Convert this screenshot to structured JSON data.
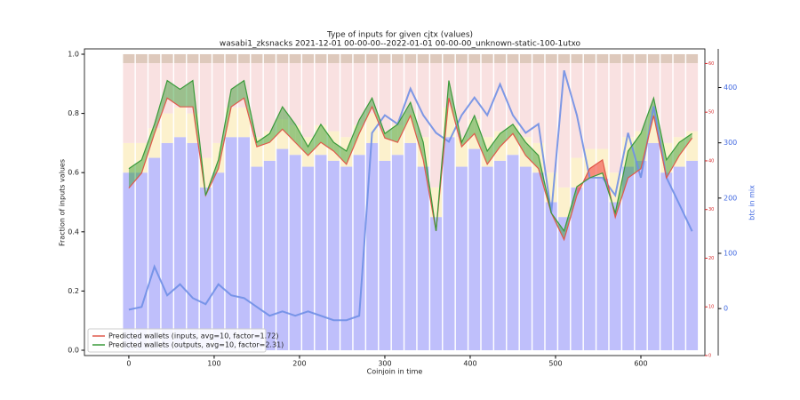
{
  "chart_data": {
    "type": "line",
    "title": "Type of inputs for given cjtx (values)",
    "subtitle": "wasabi1_zksnacks 2021-12-01 00-00-00--2022-01-01 00-00-00_unknown-static-100-1utxo",
    "xlabel": "Coinjoin in time",
    "ylabel": "Fraction of inputs values",
    "y3label": "btc in mix",
    "y3color": "#4169e1",
    "y2color": "#d62728",
    "xlim": [
      -52,
      675
    ],
    "xticks": [
      0,
      100,
      200,
      300,
      400,
      500,
      600
    ],
    "ylim": [
      -0.018,
      1.018
    ],
    "yticks": [
      {
        "value": 0,
        "label": "0.0"
      },
      {
        "value": 0.2,
        "label": "0.2"
      },
      {
        "value": 0.4,
        "label": "0.4"
      },
      {
        "value": 0.6,
        "label": "0.6"
      },
      {
        "value": 0.8,
        "label": "0.8"
      },
      {
        "value": 1,
        "label": "1.0"
      }
    ],
    "y2lim": [
      0,
      63
    ],
    "y2ticks": [
      0,
      10,
      20,
      30,
      40,
      50,
      60
    ],
    "y3lim": [
      -85,
      470
    ],
    "y3ticks": [
      0,
      100,
      200,
      300,
      400
    ],
    "legend": "lower left",
    "x": [
      0,
      15,
      30,
      45,
      60,
      75,
      90,
      105,
      120,
      135,
      150,
      165,
      180,
      195,
      210,
      225,
      240,
      255,
      270,
      285,
      300,
      315,
      330,
      345,
      360,
      375,
      390,
      405,
      420,
      435,
      450,
      465,
      480,
      495,
      510,
      525,
      540,
      555,
      570,
      585,
      600,
      615,
      630,
      645,
      660
    ],
    "stack": [
      {
        "color": "#b4b4fa",
        "values": [
          0.6,
          0.6,
          0.65,
          0.7,
          0.72,
          0.7,
          0.55,
          0.6,
          0.72,
          0.72,
          0.62,
          0.64,
          0.68,
          0.66,
          0.62,
          0.66,
          0.64,
          0.62,
          0.66,
          0.7,
          0.64,
          0.66,
          0.7,
          0.62,
          0.45,
          0.72,
          0.62,
          0.68,
          0.62,
          0.64,
          0.66,
          0.62,
          0.6,
          0.5,
          0.45,
          0.55,
          0.58,
          0.58,
          0.5,
          0.62,
          0.64,
          0.7,
          0.6,
          0.62,
          0.64
        ]
      },
      {
        "color": "#fbeec4",
        "values": [
          0.1,
          0.1,
          0.1,
          0.1,
          0.1,
          0.1,
          0.1,
          0.1,
          0.1,
          0.1,
          0.1,
          0.1,
          0.1,
          0.1,
          0.1,
          0.1,
          0.1,
          0.1,
          0.1,
          0.1,
          0.1,
          0.1,
          0.1,
          0.1,
          0.1,
          0.1,
          0.1,
          0.1,
          0.1,
          0.1,
          0.1,
          0.1,
          0.1,
          0.1,
          0.1,
          0.1,
          0.1,
          0.1,
          0.1,
          0.1,
          0.1,
          0.1,
          0.1,
          0.1,
          0.1
        ]
      },
      {
        "color": "#f8dcdc",
        "values": [
          0.27,
          0.27,
          0.22,
          0.17,
          0.15,
          0.17,
          0.32,
          0.27,
          0.15,
          0.15,
          0.25,
          0.23,
          0.19,
          0.21,
          0.25,
          0.21,
          0.23,
          0.25,
          0.21,
          0.17,
          0.23,
          0.21,
          0.17,
          0.25,
          0.42,
          0.15,
          0.25,
          0.19,
          0.25,
          0.23,
          0.21,
          0.25,
          0.27,
          0.37,
          0.42,
          0.32,
          0.29,
          0.29,
          0.37,
          0.25,
          0.23,
          0.17,
          0.27,
          0.25,
          0.23
        ]
      },
      {
        "color": "#d8c0b0",
        "values": [
          0.03,
          0.03,
          0.03,
          0.03,
          0.03,
          0.03,
          0.03,
          0.03,
          0.03,
          0.03,
          0.03,
          0.03,
          0.03,
          0.03,
          0.03,
          0.03,
          0.03,
          0.03,
          0.03,
          0.03,
          0.03,
          0.03,
          0.03,
          0.03,
          0.03,
          0.03,
          0.03,
          0.03,
          0.03,
          0.03,
          0.03,
          0.03,
          0.03,
          0.03,
          0.03,
          0.03,
          0.03,
          0.03,
          0.03,
          0.03,
          0.03,
          0.03,
          0.03,
          0.03,
          0.03
        ]
      }
    ],
    "series": [
      {
        "name": "Predicted wallets (inputs, avg=10, factor=1.72)",
        "color": "#e0584a",
        "axis": "y2",
        "values": [
          34.4,
          37.5,
          45.6,
          52.9,
          51.1,
          51.1,
          32.9,
          38.4,
          51.1,
          52.9,
          42.9,
          43.8,
          46.5,
          43.8,
          41.1,
          43.8,
          42.0,
          39.3,
          45.6,
          51.1,
          44.7,
          43.8,
          49.3,
          40.2,
          25.6,
          52.9,
          42.9,
          45.6,
          39.3,
          42.9,
          45.6,
          41.1,
          38.4,
          29.3,
          23.8,
          32.9,
          38.4,
          40.2,
          28.4,
          36.5,
          38.4,
          49.3,
          36.5,
          41.1,
          44.7
        ]
      },
      {
        "name": "Predicted wallets (outputs, avg=10, factor=2.31)",
        "color": "#3a9a3a",
        "axis": "y2",
        "values": [
          38.4,
          40.2,
          47.5,
          56.5,
          54.7,
          56.5,
          32.9,
          40.2,
          54.7,
          56.5,
          43.8,
          45.6,
          51.1,
          47.5,
          42.9,
          47.5,
          43.8,
          42.0,
          48.4,
          52.9,
          45.6,
          47.5,
          52.0,
          43.8,
          25.6,
          56.5,
          43.8,
          49.3,
          42.0,
          45.6,
          47.5,
          43.8,
          41.1,
          29.3,
          25.6,
          34.7,
          36.5,
          37.5,
          29.3,
          42.0,
          45.6,
          52.9,
          40.2,
          43.8,
          45.6
        ]
      },
      {
        "color": "#6f8fe6",
        "axis": "y3",
        "values": [
          -2,
          3,
          76,
          24,
          44,
          19,
          8,
          44,
          24,
          19,
          3,
          -13,
          -5,
          -13,
          -5,
          -13,
          -21,
          -21,
          -13,
          318,
          350,
          334,
          398,
          350,
          318,
          302,
          350,
          382,
          350,
          406,
          350,
          318,
          334,
          173,
          431,
          350,
          237,
          237,
          205,
          318,
          237,
          366,
          237,
          189,
          140
        ]
      }
    ]
  }
}
